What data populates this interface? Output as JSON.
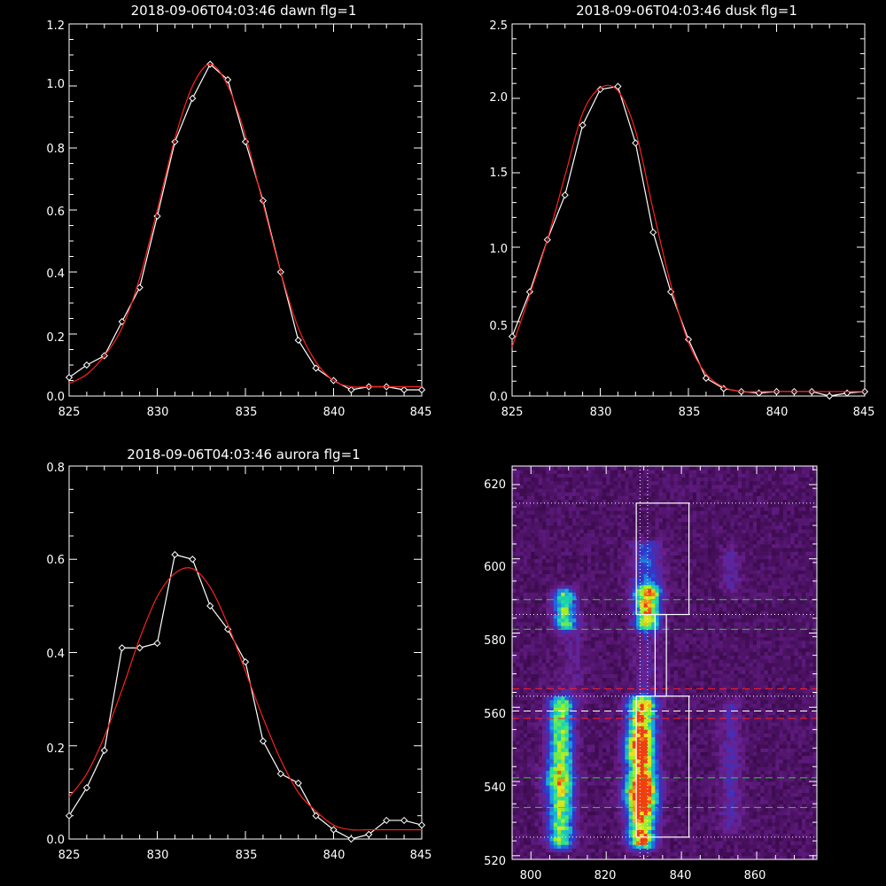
{
  "chart_data": [
    {
      "type": "line",
      "title": "2018-09-06T04:03:46 dawn flg=1",
      "xlim": [
        825,
        845
      ],
      "ylim": [
        0,
        1.2
      ],
      "xticks": [
        825,
        830,
        835,
        840,
        845
      ],
      "xtick_labels": [
        "825",
        "830",
        "835",
        "840",
        "845"
      ],
      "yticks": [
        0,
        0.2,
        0.4,
        0.6,
        0.8,
        1.0,
        1.2
      ],
      "ytick_labels": [
        "0.0",
        "0.2",
        "0.4",
        "0.6",
        "0.8",
        "1.0",
        "1.2"
      ],
      "series": [
        {
          "style": "data",
          "color": "#ffffff",
          "marker": "diamond",
          "x": [
            825,
            826,
            827,
            828,
            829,
            830,
            831,
            832,
            833,
            834,
            835,
            836,
            837,
            838,
            839,
            840,
            841,
            842,
            843,
            844,
            845
          ],
          "y": [
            0.06,
            0.1,
            0.13,
            0.24,
            0.35,
            0.58,
            0.82,
            0.96,
            1.07,
            1.02,
            0.82,
            0.63,
            0.4,
            0.18,
            0.09,
            0.05,
            0.02,
            0.03,
            0.03,
            0.02,
            0.02
          ]
        },
        {
          "style": "fit",
          "color": "#ff2020",
          "x": [
            825,
            826,
            827,
            828,
            829,
            830,
            831,
            832,
            833,
            834,
            835,
            836,
            837,
            838,
            839,
            840,
            841,
            842,
            843,
            844,
            845
          ],
          "y": [
            0.04,
            0.07,
            0.13,
            0.22,
            0.38,
            0.6,
            0.83,
            1.0,
            1.07,
            1.0,
            0.84,
            0.62,
            0.4,
            0.22,
            0.11,
            0.05,
            0.03,
            0.03,
            0.03,
            0.03,
            0.03
          ]
        }
      ]
    },
    {
      "type": "line",
      "title": "2018-09-06T04:03:46 dusk flg=1",
      "xlim": [
        825,
        845
      ],
      "ylim": [
        0,
        2.5
      ],
      "xticks": [
        825,
        830,
        835,
        840,
        845
      ],
      "xtick_labels": [
        "825",
        "830",
        "835",
        "840",
        "845"
      ],
      "yticks": [
        0,
        0.5,
        1.0,
        1.5,
        2.0,
        2.5
      ],
      "ytick_labels": [
        "0.0",
        "0.5",
        "1.0",
        "1.5",
        "2.0",
        "2.5"
      ],
      "series": [
        {
          "style": "data",
          "color": "#ffffff",
          "marker": "diamond",
          "x": [
            825,
            826,
            827,
            828,
            829,
            830,
            831,
            832,
            833,
            834,
            835,
            836,
            837,
            838,
            839,
            840,
            841,
            842,
            843,
            844,
            845
          ],
          "y": [
            0.4,
            0.7,
            1.05,
            1.35,
            1.82,
            2.06,
            2.08,
            1.7,
            1.1,
            0.7,
            0.38,
            0.12,
            0.05,
            0.03,
            0.02,
            0.03,
            0.03,
            0.03,
            0.0,
            0.02,
            0.03
          ]
        },
        {
          "style": "fit",
          "color": "#ff2020",
          "x": [
            825,
            826,
            827,
            828,
            829,
            830,
            831,
            832,
            833,
            834,
            835,
            836,
            837,
            838,
            839,
            840,
            841,
            842,
            843,
            844,
            845
          ],
          "y": [
            0.33,
            0.68,
            1.05,
            1.48,
            1.9,
            2.07,
            2.05,
            1.78,
            1.25,
            0.75,
            0.36,
            0.15,
            0.06,
            0.03,
            0.03,
            0.03,
            0.03,
            0.03,
            0.03,
            0.03,
            0.03
          ]
        }
      ]
    },
    {
      "type": "line",
      "title": "2018-09-06T04:03:46 aurora flg=1",
      "xlim": [
        825,
        845
      ],
      "ylim": [
        0,
        0.8
      ],
      "xticks": [
        825,
        830,
        835,
        840,
        845
      ],
      "xtick_labels": [
        "825",
        "830",
        "835",
        "840",
        "845"
      ],
      "yticks": [
        0,
        0.2,
        0.4,
        0.6,
        0.8
      ],
      "ytick_labels": [
        "0.0",
        "0.2",
        "0.4",
        "0.6",
        "0.8"
      ],
      "series": [
        {
          "style": "data",
          "color": "#ffffff",
          "marker": "diamond",
          "x": [
            825,
            826,
            827,
            828,
            829,
            830,
            831,
            832,
            833,
            834,
            835,
            836,
            837,
            838,
            839,
            840,
            841,
            842,
            843,
            844,
            845
          ],
          "y": [
            0.05,
            0.11,
            0.19,
            0.41,
            0.41,
            0.42,
            0.61,
            0.6,
            0.5,
            0.45,
            0.38,
            0.21,
            0.14,
            0.12,
            0.05,
            0.02,
            0.0,
            0.01,
            0.04,
            0.04,
            0.03
          ]
        },
        {
          "style": "fit",
          "color": "#ff2020",
          "x": [
            825,
            826,
            827,
            828,
            829,
            830,
            831,
            832,
            833,
            834,
            835,
            836,
            837,
            838,
            839,
            840,
            841,
            842,
            843,
            844,
            845
          ],
          "y": [
            0.09,
            0.14,
            0.22,
            0.32,
            0.43,
            0.52,
            0.57,
            0.58,
            0.54,
            0.46,
            0.36,
            0.26,
            0.17,
            0.1,
            0.06,
            0.03,
            0.02,
            0.02,
            0.02,
            0.02,
            0.02
          ]
        }
      ]
    },
    {
      "type": "heatmap",
      "xlim": [
        795,
        876
      ],
      "ylim": [
        519,
        625
      ],
      "xticks": [
        800,
        820,
        840,
        860
      ],
      "xtick_labels": [
        "800",
        "820",
        "840",
        "860"
      ],
      "yticks": [
        520,
        540,
        560,
        580,
        600,
        620
      ],
      "ytick_labels": [
        "520",
        "540",
        "560",
        "580",
        "600",
        "620"
      ],
      "colormap": [
        "#000000",
        "#3a0a4a",
        "#6a2090",
        "#2a3ad0",
        "#18a0e8",
        "#20e0a0",
        "#a0f020",
        "#f0e020",
        "#f04010"
      ],
      "emission_bands": [
        {
          "x_center": 808,
          "x_sigma": 2.2,
          "y_from": 524,
          "y_to": 561,
          "peak": 0.55
        },
        {
          "x_center": 829.5,
          "x_sigma": 2.4,
          "y_from": 524,
          "y_to": 561,
          "peak": 0.78
        },
        {
          "x_center": 853,
          "x_sigma": 2.0,
          "y_from": 528,
          "y_to": 560,
          "peak": 0.12
        },
        {
          "x_center": 809,
          "x_sigma": 2.0,
          "y_from": 583,
          "y_to": 590,
          "peak": 0.5
        },
        {
          "x_center": 831,
          "x_sigma": 2.2,
          "y_from": 583,
          "y_to": 591,
          "peak": 0.62
        },
        {
          "x_center": 831,
          "x_sigma": 2.6,
          "y_from": 591,
          "y_to": 603,
          "peak": 0.22
        },
        {
          "x_center": 853,
          "x_sigma": 1.8,
          "y_from": 593,
          "y_to": 601,
          "peak": 0.1
        },
        {
          "x_center": 811,
          "x_sigma": 2.5,
          "y_from": 562,
          "y_to": 582,
          "peak": 0.07
        },
        {
          "x_center": 831,
          "x_sigma": 2.5,
          "y_from": 562,
          "y_to": 582,
          "peak": 0.09
        }
      ],
      "hotspots": [
        {
          "x": 829,
          "y": 537,
          "peak": 1.0,
          "sigma": 3.0
        },
        {
          "x": 828,
          "y": 549,
          "peak": 0.7,
          "sigma": 2.5
        },
        {
          "x": 807,
          "y": 540,
          "peak": 0.4,
          "sigma": 3.0
        },
        {
          "x": 831,
          "y": 587,
          "peak": 0.45,
          "sigma": 1.5
        }
      ],
      "boxes": [
        {
          "x": [
            828,
            842
          ],
          "y": [
            525,
            563
          ]
        },
        {
          "x": [
            828,
            842
          ],
          "y": [
            585,
            615
          ]
        }
      ],
      "connector": {
        "x": [
          833,
          836
        ],
        "y": [
          563,
          585
        ]
      },
      "horizontal_lines": [
        {
          "y": 615,
          "style": "dotted",
          "color": "#ffffff"
        },
        {
          "y": 589,
          "style": "dashed",
          "color": "#20e020"
        },
        {
          "y": 585,
          "style": "dotted",
          "color": "#ffffff"
        },
        {
          "y": 581,
          "style": "dashed",
          "color": "#20e020"
        },
        {
          "y": 565,
          "style": "dashed",
          "color": "#ff2020"
        },
        {
          "y": 563,
          "style": "dotted",
          "color": "#ffffff"
        },
        {
          "y": 559,
          "style": "dashed",
          "color": "#ffffff"
        },
        {
          "y": 557,
          "style": "dashed",
          "color": "#ff2020"
        },
        {
          "y": 541,
          "style": "dashed",
          "color": "#20e020"
        },
        {
          "y": 533,
          "style": "dashed",
          "color": "#20e020"
        },
        {
          "y": 525,
          "style": "dotted",
          "color": "#ffffff"
        }
      ],
      "vertical_lines": [
        {
          "x": 829,
          "style": "dotted",
          "color": "#ffffff"
        },
        {
          "x": 831,
          "style": "dotted",
          "color": "#ffffff"
        }
      ]
    }
  ]
}
